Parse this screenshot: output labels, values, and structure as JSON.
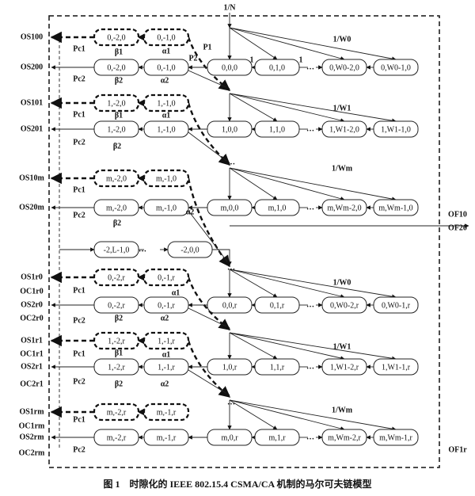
{
  "input_label": "1/N",
  "rows": [
    {
      "nodes": [
        "0,-2,0",
        "0,-1,0"
      ]
    },
    {
      "nodes": [
        "0,-2,0",
        "0,-1,0",
        "0,0,0",
        "0,1,0",
        "0,W0-2,0",
        "0,W0-1,0"
      ]
    },
    {
      "nodes": [
        "1,-2,0",
        "1,-1,0"
      ]
    },
    {
      "nodes": [
        "1,-2,0",
        "1,-1,0",
        "1,0,0",
        "1,1,0",
        "1,W1-2,0",
        "1,W1-1,0"
      ]
    },
    {
      "nodes": [
        "m,-2,0",
        "m,-1,0"
      ]
    },
    {
      "nodes": [
        "m,-2,0",
        "m,-1,0",
        "m,0,0",
        "m,1,0",
        "m,Wm-2,0",
        "m,Wm-1,0"
      ]
    },
    {
      "nodes": [
        "-2,L-1,0",
        "-2,0,0"
      ]
    },
    {
      "nodes": [
        "0,-2,r",
        "0,-1,r"
      ]
    },
    {
      "nodes": [
        "0,-2,r",
        "0,-1,r",
        "0,0,r",
        "0,1,r",
        "0,W0-2,r",
        "0,W0-1,r"
      ]
    },
    {
      "nodes": [
        "1,-2,r",
        "1,-1,r"
      ]
    },
    {
      "nodes": [
        "1,-2,r",
        "1,-1,r",
        "1,0,r",
        "1,1,r",
        "1,W1-2,r",
        "1,W1-1,r"
      ]
    },
    {
      "nodes": [
        "m,-2,r",
        "m,-1,r"
      ]
    },
    {
      "nodes": [
        "m,-2,r",
        "m,-1,r",
        "m,0,r",
        "m,1,r",
        "m,Wm-2,r",
        "m,Wm-1,r"
      ]
    }
  ],
  "side_labels": [
    "OS100",
    "OS200",
    "OS101",
    "OS201",
    "OS10m",
    "OS20m",
    "OS1r0",
    "OC1r0",
    "OS2r0",
    "OC2r0",
    "OS1r1",
    "OC1r1",
    "OS2r1",
    "OC2r1",
    "OS1rm",
    "OC1rm",
    "OS2rm",
    "OC2rm"
  ],
  "edge_labels": [
    "P1",
    "P2",
    "Pc1",
    "β1",
    "α1",
    "Pc2",
    "β2",
    "α2",
    "1",
    "1",
    "1/W0",
    "Pc1",
    "β1",
    "α1",
    "Pc2",
    "β2",
    "1/W1",
    "Pc1",
    "α2",
    "β2",
    "1/Wm",
    "Pc2",
    "Pc1",
    "α1",
    "β2",
    "α2",
    "Pc2",
    "1/W0",
    "Pc1",
    "β1",
    "α1",
    "β2",
    "α2",
    "1/W1",
    "Pc2",
    "Pc1",
    "1/Wm",
    "Pc2",
    "…",
    "…",
    "…",
    "…",
    "…",
    "…",
    "…",
    "…",
    "…",
    "…"
  ],
  "right_labels": [
    "OF10",
    "OF20",
    "OF1r"
  ],
  "caption": "图 1　时隙化的 IEEE 802.15.4 CSMA/CA 机制的马尔可夫链模型"
}
